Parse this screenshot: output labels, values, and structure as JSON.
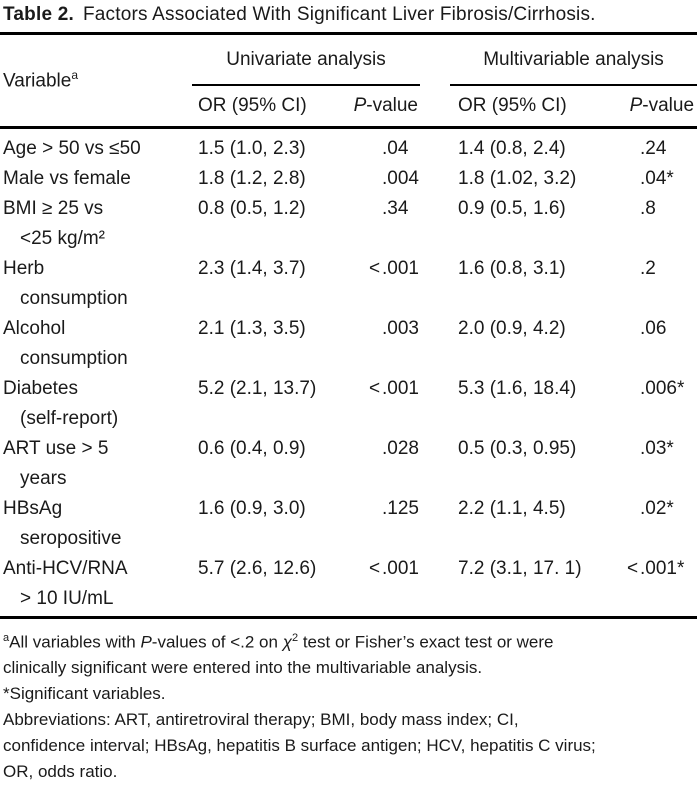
{
  "colors": {
    "background": "#ffffff",
    "text": "#1a1a1a",
    "rules": "#000000"
  },
  "title": {
    "label": "Table 2.",
    "text": "Factors Associated With Significant Liver Fibrosis/Cirrhosis."
  },
  "header": {
    "variable": "Variable",
    "variable_sup": "a",
    "uni_spanner": "Univariate analysis",
    "multi_spanner": "Multivariable analysis",
    "or_header": "OR (95% CI)",
    "p_header_italic": "P",
    "p_header_rest": "-value"
  },
  "rows": [
    {
      "v1": "Age > 50 vs ≤50",
      "v2": "",
      "uor": "1.5 (1.0, 2.3)",
      "up_lt": "",
      "up": ".04",
      "mor": "1.4 (0.8, 2.4)",
      "mp_lt": "",
      "mp": ".24"
    },
    {
      "v1": "Male vs female",
      "v2": "",
      "uor": "1.8 (1.2, 2.8)",
      "up_lt": "",
      "up": ".004",
      "mor": "1.8 (1.02, 3.2)",
      "mp_lt": "",
      "mp": ".04*"
    },
    {
      "v1": "BMI ≥ 25 vs",
      "v2": "<25 kg/m²",
      "uor": "0.8 (0.5, 1.2)",
      "up_lt": "",
      "up": ".34",
      "mor": "0.9 (0.5, 1.6)",
      "mp_lt": "",
      "mp": ".8"
    },
    {
      "v1": "Herb",
      "v2": "consumption",
      "uor": "2.3 (1.4, 3.7)",
      "up_lt": "<",
      "up": ".001",
      "mor": "1.6 (0.8, 3.1)",
      "mp_lt": "",
      "mp": ".2"
    },
    {
      "v1": "Alcohol",
      "v2": "consumption",
      "uor": "2.1 (1.3, 3.5)",
      "up_lt": "",
      "up": ".003",
      "mor": "2.0 (0.9, 4.2)",
      "mp_lt": "",
      "mp": ".06"
    },
    {
      "v1": "Diabetes",
      "v2": "(self-report)",
      "uor": "5.2 (2.1, 13.7)",
      "up_lt": "<",
      "up": ".001",
      "mor": "5.3 (1.6, 18.4)",
      "mp_lt": "",
      "mp": ".006*"
    },
    {
      "v1": "ART use > 5",
      "v2": "years",
      "uor": "0.6 (0.4, 0.9)",
      "up_lt": "",
      "up": ".028",
      "mor": "0.5 (0.3, 0.95)",
      "mp_lt": "",
      "mp": ".03*"
    },
    {
      "v1": "HBsAg",
      "v2": "seropositive",
      "uor": "1.6 (0.9, 3.0)",
      "up_lt": "",
      "up": ".125",
      "mor": "2.2 (1.1, 4.5)",
      "mp_lt": "",
      "mp": ".02*"
    },
    {
      "v1": "Anti-HCV/RNA",
      "v2": "> 10 IU/mL",
      "uor": "5.7 (2.6, 12.6)",
      "up_lt": "<",
      "up": ".001",
      "mor": "7.2 (3.1, 17. 1)",
      "mp_lt": "<",
      "mp": ".001*"
    }
  ],
  "footnotes": {
    "note_a": {
      "sup": "a",
      "seg1": "All variables with ",
      "p": "P",
      "seg2": "-values of <.2 on ",
      "chi": "χ",
      "chi_sup": "2",
      "seg3": " test or Fisher’s exact test or were",
      "line2": "clinically significant were entered into the multivariable analysis."
    },
    "note_star": "*Significant variables.",
    "abbrev_line1": "Abbreviations: ART, antiretroviral therapy; BMI, body mass index; CI,",
    "abbrev_line2": "confidence interval; HBsAg, hepatitis B surface antigen; HCV, hepatitis C virus;",
    "abbrev_line3": "OR, odds ratio."
  }
}
